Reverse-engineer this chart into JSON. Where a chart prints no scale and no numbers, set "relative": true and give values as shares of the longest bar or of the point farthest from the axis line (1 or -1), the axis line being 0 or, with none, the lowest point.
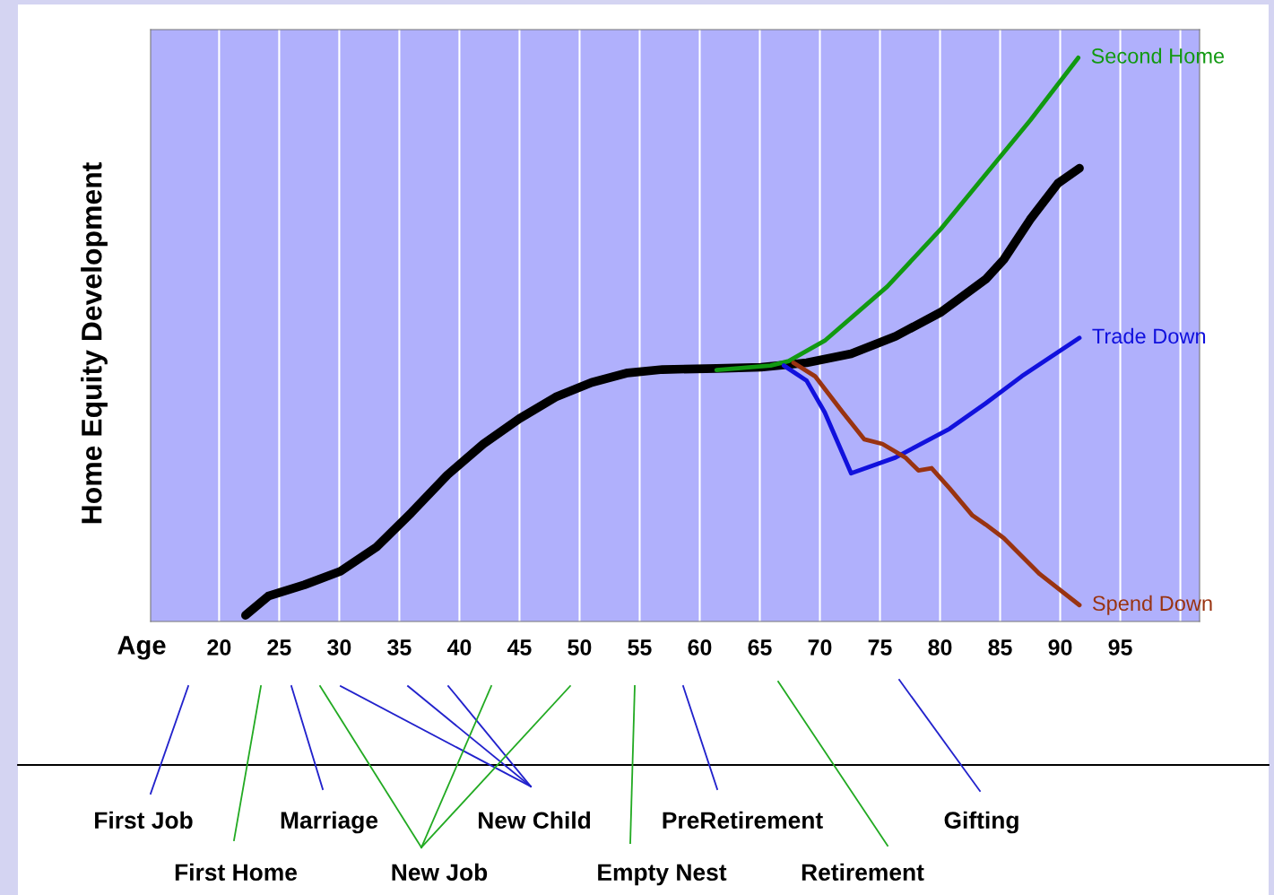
{
  "chart_data": {
    "type": "line",
    "relative": true,
    "xlabel": "Age",
    "ylabel": "Home Equity Development",
    "xlim": [
      14.3,
      101.6
    ],
    "xticks": [
      20,
      25,
      30,
      35,
      40,
      45,
      50,
      55,
      60,
      65,
      70,
      75,
      80,
      85,
      90,
      95,
      {
        "value": 100,
        "label": null
      }
    ],
    "grid": "x",
    "tick_labels": "x",
    "line_style": "solid",
    "marker": "none",
    "series": [
      {
        "color": "#000000",
        "x": [
          22.2,
          24.1,
          27.1,
          30.1,
          33.1,
          36.0,
          39.0,
          42.0,
          45.0,
          48.0,
          51.0,
          54.0,
          56.9,
          61.4,
          65.1,
          68.9,
          72.6,
          76.3,
          80.1,
          83.8,
          85.3,
          87.5,
          89.8,
          91.6
        ],
        "values": [
          0.011,
          0.045,
          0.065,
          0.089,
          0.132,
          0.193,
          0.26,
          0.315,
          0.36,
          0.398,
          0.424,
          0.441,
          0.447,
          0.449,
          0.451,
          0.459,
          0.475,
          0.506,
          0.549,
          0.607,
          0.642,
          0.713,
          0.777,
          0.804
        ]
      },
      {
        "name": "Second Home",
        "color": "#119911",
        "x": [
          61.4,
          65.9,
          67.4,
          70.4,
          75.6,
          80.1,
          83.8,
          87.5,
          91.5
        ],
        "values": [
          0.446,
          0.454,
          0.462,
          0.498,
          0.594,
          0.697,
          0.793,
          0.889,
          1.0
        ]
      },
      {
        "name": "Trade Down",
        "color": "#1111dd",
        "x": [
          67.0,
          68.9,
          70.4,
          72.6,
          76.3,
          80.8,
          83.8,
          86.8,
          91.6
        ],
        "values": [
          0.454,
          0.427,
          0.371,
          0.263,
          0.291,
          0.342,
          0.387,
          0.435,
          0.503
        ]
      },
      {
        "name": "Spend Down",
        "color": "#993311",
        "x": [
          67.8,
          69.6,
          71.9,
          73.7,
          75.2,
          77.1,
          78.2,
          79.3,
          80.8,
          82.7,
          83.8,
          85.3,
          88.3,
          91.6
        ],
        "values": [
          0.459,
          0.435,
          0.371,
          0.323,
          0.315,
          0.291,
          0.268,
          0.272,
          0.236,
          0.188,
          0.172,
          0.148,
          0.084,
          0.029
        ]
      }
    ],
    "annotations": [
      "First Job",
      "Marriage",
      "New Child",
      "PreRetirement",
      "Gifting",
      "First Home",
      "New Job",
      "Empty Nest",
      "Retirement"
    ]
  }
}
